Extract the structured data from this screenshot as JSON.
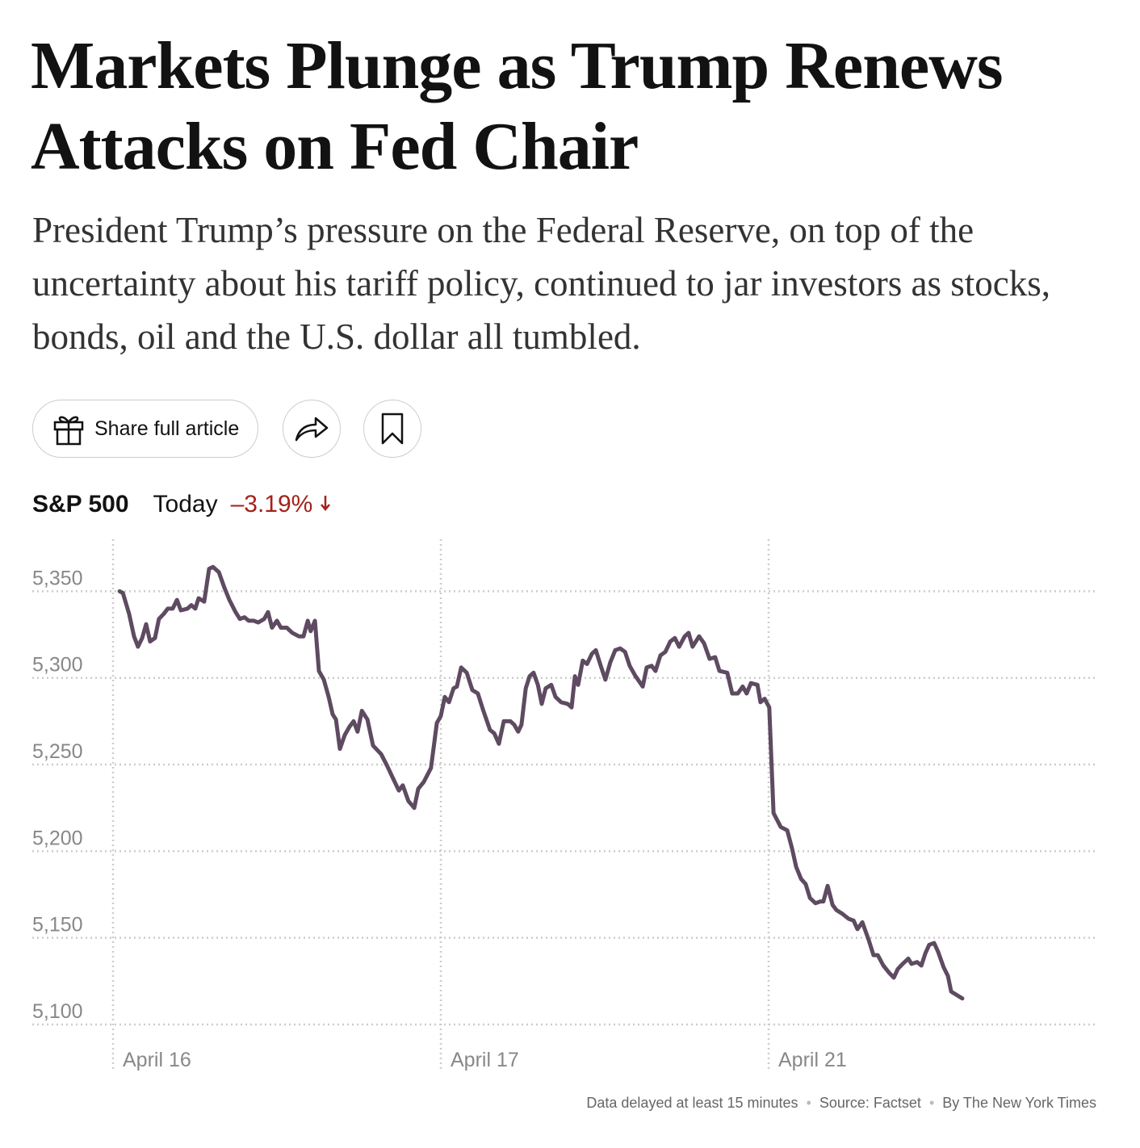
{
  "header": {
    "title": "Markets Plunge as Trump Renews Attacks on Fed Chair",
    "subtitle": "President Trump’s pressure on the Federal Reserve, on top of the uncertainty about his tariff policy, continued to jar investors as stocks, bonds, oil and the U.S. dollar all tumbled."
  },
  "actions": {
    "share": "Share full article"
  },
  "chart_data": {
    "type": "line",
    "title": "S&P 500",
    "period": "Today",
    "change": "–3.19%",
    "x": [
      0.02,
      0.03,
      0.049,
      0.064,
      0.076,
      0.089,
      0.101,
      0.113,
      0.128,
      0.14,
      0.155,
      0.167,
      0.182,
      0.195,
      0.207,
      0.227,
      0.239,
      0.251,
      0.261,
      0.278,
      0.293,
      0.305,
      0.323,
      0.34,
      0.355,
      0.374,
      0.387,
      0.401,
      0.414,
      0.429,
      0.443,
      0.461,
      0.473,
      0.485,
      0.5,
      0.512,
      0.53,
      0.547,
      0.567,
      0.581,
      0.594,
      0.603,
      0.616,
      0.628,
      0.643,
      0.658,
      0.67,
      0.68,
      0.692,
      0.707,
      0.722,
      0.734,
      0.746,
      0.759,
      0.776,
      0.793,
      0.818,
      0.837,
      0.857,
      0.872,
      0.884,
      0.901,
      0.919,
      0.931,
      0.948,
      0.97,
      0.988,
      1,
      1.012,
      1.025,
      1.039,
      1.049,
      1.062,
      1.079,
      1.096,
      1.113,
      1.128,
      1.15,
      1.163,
      1.177,
      1.192,
      1.212,
      1.224,
      1.236,
      1.246,
      1.259,
      1.271,
      1.283,
      1.296,
      1.308,
      1.32,
      1.337,
      1.35,
      1.367,
      1.387,
      1.399,
      1.409,
      1.419,
      1.433,
      1.446,
      1.461,
      1.473,
      1.488,
      1.502,
      1.517,
      1.532,
      1.547,
      1.562,
      1.576,
      1.594,
      1.616,
      1.628,
      1.643,
      1.655,
      1.67,
      1.685,
      1.7,
      1.714,
      1.727,
      1.744,
      1.756,
      1.768,
      1.788,
      1.803,
      1.82,
      1.837,
      1.85,
      1.874,
      1.889,
      1.906,
      1.921,
      1.933,
      1.946,
      1.966,
      1.975,
      1.988,
      2.002,
      2.015,
      2.037,
      2.057,
      2.071,
      2.084,
      2.099,
      2.113,
      2.126,
      2.143,
      2.158,
      2.167,
      2.18,
      2.195,
      2.207,
      2.224,
      2.244,
      2.259,
      2.271,
      2.286,
      2.305,
      2.32,
      2.333,
      2.35,
      2.367,
      2.382,
      2.394,
      2.409,
      2.426,
      2.436,
      2.453,
      2.466,
      2.478,
      2.49,
      2.505,
      2.517,
      2.534,
      2.547,
      2.557,
      2.574,
      2.591
    ],
    "series": [
      {
        "color": "#5e4a61",
        "values": [
          5350,
          5349,
          5337,
          5324,
          5318,
          5323,
          5331,
          5321,
          5323,
          5334,
          5337,
          5340,
          5340,
          5345,
          5339,
          5340,
          5342,
          5340,
          5346,
          5344,
          5363,
          5364,
          5361,
          5352,
          5345,
          5338,
          5334,
          5335,
          5333,
          5333,
          5332,
          5334,
          5338,
          5329,
          5333,
          5329,
          5329,
          5326,
          5324,
          5324,
          5333,
          5327,
          5333,
          5304,
          5299,
          5289,
          5279,
          5276,
          5259,
          5267,
          5272,
          5275,
          5269,
          5281,
          5276,
          5261,
          5256,
          5249,
          5241,
          5235,
          5238,
          5229,
          5225,
          5236,
          5240,
          5248,
          5274,
          5278,
          5289,
          5286,
          5294,
          5295,
          5306,
          5303,
          5293,
          5291,
          5282,
          5270,
          5268,
          5262,
          5275,
          5275,
          5273,
          5269,
          5273,
          5294,
          5301,
          5303,
          5296,
          5285,
          5294,
          5296,
          5289,
          5286,
          5285,
          5283,
          5301,
          5296,
          5310,
          5308,
          5314,
          5316,
          5307,
          5299,
          5309,
          5316,
          5317,
          5315,
          5307,
          5301,
          5295,
          5306,
          5307,
          5304,
          5313,
          5315,
          5321,
          5323,
          5318,
          5324,
          5326,
          5318,
          5324,
          5320,
          5311,
          5312,
          5304,
          5303,
          5291,
          5291,
          5295,
          5291,
          5297,
          5296,
          5286,
          5288,
          5283,
          5222,
          5214,
          5212,
          5202,
          5191,
          5184,
          5181,
          5173,
          5170,
          5171,
          5171,
          5180,
          5169,
          5166,
          5164,
          5161,
          5160,
          5155,
          5159,
          5149,
          5140,
          5140,
          5134,
          5130,
          5127,
          5132,
          5135,
          5138,
          5135,
          5136,
          5134,
          5141,
          5146,
          5147,
          5142,
          5133,
          5128,
          5119,
          5117,
          5115
        ]
      }
    ],
    "xlim": [
      0,
      3
    ],
    "xticks": [
      {
        "value": 0,
        "label": "April 16"
      },
      {
        "value": 1,
        "label": "April 17"
      },
      {
        "value": 2,
        "label": "April 21"
      }
    ],
    "ylim": [
      5100,
      5380
    ],
    "yticks": [
      {
        "value": 5100,
        "label": "5,100"
      },
      {
        "value": 5150,
        "label": "5,150"
      },
      {
        "value": 5200,
        "label": "5,200"
      },
      {
        "value": 5250,
        "label": "5,250"
      },
      {
        "value": 5300,
        "label": "5,300"
      },
      {
        "value": 5350,
        "label": "5,350"
      }
    ],
    "grid": true
  },
  "footer": [
    "Data delayed at least 15 minutes",
    "Source: Factset",
    "By The New York Times"
  ]
}
